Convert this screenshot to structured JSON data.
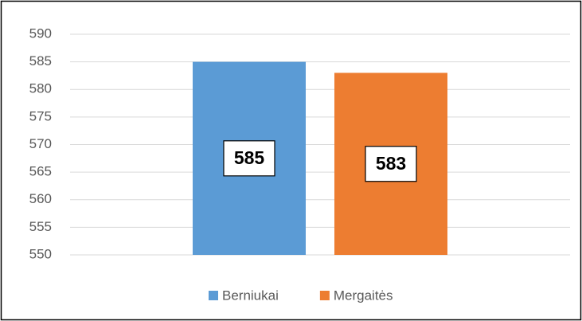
{
  "chart_data": {
    "type": "bar",
    "categories": [
      null
    ],
    "series": [
      {
        "name": "Berniukai",
        "color": "#5b9bd5",
        "values": [
          585
        ]
      },
      {
        "name": "Mergaitės",
        "color": "#ed7d31",
        "values": [
          583
        ]
      }
    ],
    "ylim": [
      550,
      590
    ],
    "yticks": [
      550,
      555,
      560,
      565,
      570,
      575,
      580,
      585,
      590
    ],
    "grid": true,
    "legend": "bottom"
  }
}
